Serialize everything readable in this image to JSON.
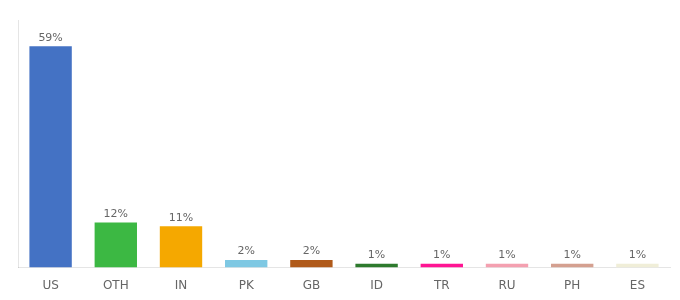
{
  "chart_data": {
    "type": "bar",
    "categories": [
      "US",
      "OTH",
      "IN",
      "PK",
      "GB",
      "ID",
      "TR",
      "RU",
      "PH",
      "ES"
    ],
    "values": [
      59,
      12,
      11,
      2,
      2,
      1,
      1,
      1,
      1,
      1
    ],
    "value_labels": [
      "59%",
      "12%",
      "11%",
      "2%",
      "2%",
      "1%",
      "1%",
      "1%",
      "1%",
      "1%"
    ],
    "colors": [
      "#4472c4",
      "#3cb843",
      "#f5a800",
      "#7ec8e3",
      "#b05a1a",
      "#2d7a2d",
      "#ff1493",
      "#f4a0b0",
      "#d4a090",
      "#f0eed8"
    ],
    "ylim": [
      0,
      66
    ],
    "grid": false,
    "data_labels": true,
    "tick_labels": "x"
  }
}
